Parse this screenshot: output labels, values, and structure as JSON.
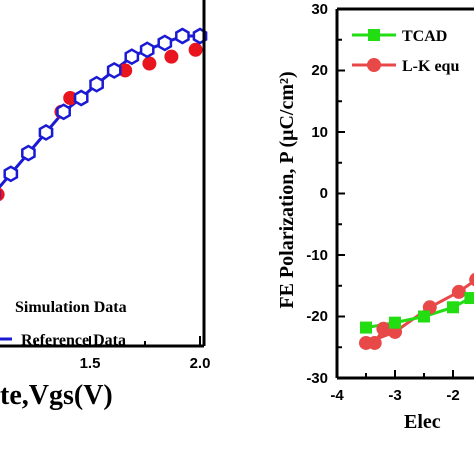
{
  "chart_data": [
    {
      "type": "line",
      "panel": "left",
      "xlabel": "te,Vgs(V)",
      "x_tick_labels": [
        "1.5",
        "2.0"
      ],
      "xlim": [
        0.9,
        2.0
      ],
      "ylim": [
        0,
        1
      ],
      "legend": {
        "placement": "bottom-right",
        "entries": [
          "Simulation Data",
          "Reference Data"
        ]
      },
      "series": [
        {
          "name": "Simulation Data",
          "color": "#e8141e",
          "marker": "filled-circle",
          "x": [
            1.08,
            1.37,
            1.41,
            1.53,
            1.66,
            1.77,
            1.87,
            1.98
          ],
          "y": [
            0.72,
            0.84,
            0.86,
            0.88,
            0.9,
            0.91,
            0.92,
            0.93
          ]
        },
        {
          "name": "Reference Data",
          "color": "#1a1ad4",
          "marker": "open-hexagon",
          "x": [
            0.9,
            0.97,
            1.06,
            1.14,
            1.22,
            1.3,
            1.38,
            1.46,
            1.53,
            1.61,
            1.69,
            1.76,
            1.84,
            1.92,
            2.0
          ],
          "y": [
            0.67,
            0.69,
            0.72,
            0.75,
            0.78,
            0.81,
            0.84,
            0.86,
            0.88,
            0.9,
            0.92,
            0.93,
            0.94,
            0.95,
            0.95
          ]
        }
      ]
    },
    {
      "type": "line",
      "panel": "right",
      "ylabel": "FE Polarization, P (μC/cm²)",
      "xlabel": "Elec",
      "x_tick_labels": [
        "-4",
        "-3",
        "-2"
      ],
      "y_tick_labels": [
        "30",
        "20",
        "10",
        "0",
        "-10",
        "-20",
        "-30"
      ],
      "xlim": [
        -4,
        -1.6
      ],
      "ylim": [
        -30,
        30
      ],
      "legend": {
        "placement": "top-right",
        "entries": [
          "TCAD",
          "L-K equ"
        ]
      },
      "series": [
        {
          "name": "TCAD",
          "color": "#22dd11",
          "marker": "filled-square",
          "x": [
            -3.5,
            -3.0,
            -2.5,
            -2.0,
            -1.7
          ],
          "y": [
            -21.8,
            -21.0,
            -20.0,
            -18.5,
            -17.0
          ]
        },
        {
          "name": "L-K equ",
          "color": "#e84848",
          "marker": "filled-circle",
          "hysteresis": true,
          "x": [
            -1.6,
            -1.9,
            -2.4,
            -3.0,
            -3.5,
            -3.35,
            -3.2
          ],
          "y": [
            -14.0,
            -16.0,
            -18.5,
            -22.5,
            -24.3,
            -24.3,
            -22.0
          ]
        }
      ]
    }
  ]
}
